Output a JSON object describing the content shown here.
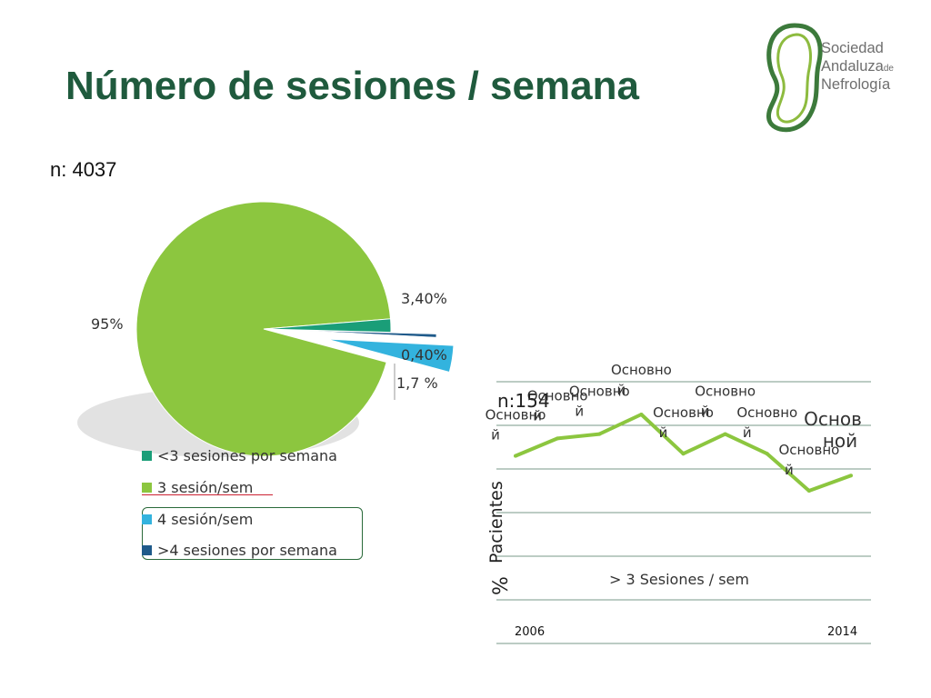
{
  "title": "Número de sesiones / semana",
  "pie_n": "n: 4037",
  "logo": {
    "line1": "Sociedad",
    "line2": "Andaluza",
    "line2_suffix": "de",
    "line3": "Nefrología",
    "colors": {
      "dark_green": "#3c7a3b",
      "light_green": "#8dbb3f"
    }
  },
  "colors": {
    "title": "#1f5a3d",
    "lt3": "#1a9e78",
    "eq3": "#8cc63f",
    "eq4": "#33b3de",
    "gt4": "#1f5a8a",
    "line": "#8cc63f"
  },
  "chart_data": [
    {
      "type": "pie",
      "title": "",
      "legend_position": "bottom",
      "slices": [
        {
          "label": "<3 sesiones por semana",
          "value": 1.7,
          "display": "1,7 %"
        },
        {
          "label": "3 sesión/sem",
          "value": 95,
          "display": "95%"
        },
        {
          "label": "4 sesión/sem",
          "value": 3.4,
          "display": "3,40%"
        },
        {
          "label": ">4 sesiones por semana",
          "value": 0.4,
          "display": "0,40%"
        }
      ]
    },
    {
      "type": "line",
      "n_label": "n:154",
      "ylabel_symbol": "%",
      "ylabel": "Pacientes",
      "series_label": "> 3 Sesiones / sem",
      "x_start_label": "2006",
      "x_end_label": "2014",
      "grid": true,
      "ylim": [
        0,
        6
      ],
      "x": [
        0,
        1,
        2,
        3,
        4,
        5,
        6,
        7,
        8
      ],
      "values": [
        4.3,
        4.7,
        4.8,
        5.25,
        4.35,
        4.8,
        4.35,
        3.5,
        3.85
      ],
      "point_labels": [
        "Основной",
        "Основной",
        "Основной",
        "Основной",
        "Основной",
        "Основной",
        "Основной",
        "Основной",
        "Основной"
      ]
    }
  ]
}
